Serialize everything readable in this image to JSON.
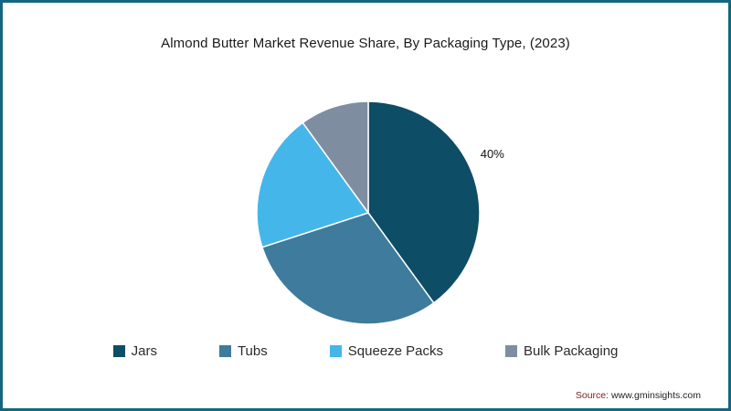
{
  "chart_data": {
    "type": "pie",
    "title": "Almond Butter Market Revenue Share, By Packaging Type, (2023)",
    "labels": [
      "Jars",
      "Tubs",
      "Squeeze Packs",
      "Bulk Packaging"
    ],
    "values": [
      40,
      30,
      20,
      10
    ],
    "colors": [
      "#0d4d66",
      "#3e7b9c",
      "#45b6ea",
      "#7f8da0"
    ],
    "value_labels": [
      "40%",
      "",
      "",
      ""
    ],
    "start_angle": "top",
    "direction": "clockwise",
    "legend_position": "bottom"
  },
  "source": {
    "prefix": "Source:",
    "url": "www.gminsights.com"
  },
  "frame": {
    "border_color": "#15677f"
  }
}
